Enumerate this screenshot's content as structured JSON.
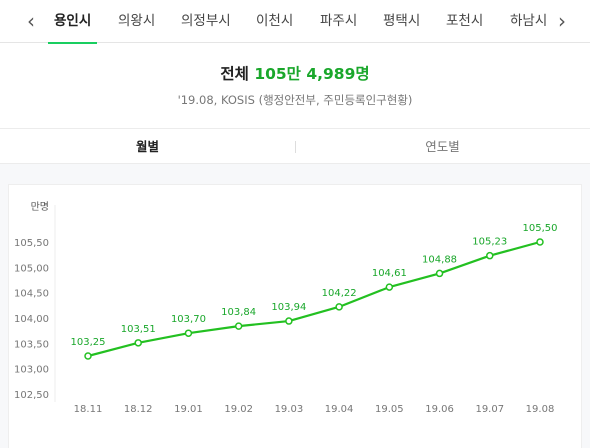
{
  "nav": {
    "prev_icon": "chevron-left-icon",
    "next_icon": "chevron-right-icon",
    "tabs": [
      {
        "label": "용인시",
        "active": true
      },
      {
        "label": "의왕시",
        "active": false
      },
      {
        "label": "의정부시",
        "active": false
      },
      {
        "label": "이천시",
        "active": false
      },
      {
        "label": "파주시",
        "active": false
      },
      {
        "label": "평택시",
        "active": false
      },
      {
        "label": "포천시",
        "active": false
      },
      {
        "label": "하남시",
        "active": false
      }
    ]
  },
  "summary": {
    "label": "전체",
    "value": "105만 4,989명",
    "source": "'19.08, KOSIS (행정안전부, 주민등록인구현황)"
  },
  "toggle": {
    "monthly": "월별",
    "yearly": "연도별",
    "selected": "monthly"
  },
  "colors": {
    "accent": "#19ce60",
    "line": "#23c021",
    "value_text": "#1aa72b"
  },
  "chart_data": {
    "type": "line",
    "unit_label": "만명",
    "categories": [
      "18.11",
      "18.12",
      "19.01",
      "19.02",
      "19.03",
      "19.04",
      "19.05",
      "19.06",
      "19.07",
      "19.08"
    ],
    "values": [
      103.25,
      103.51,
      103.7,
      103.84,
      103.94,
      104.22,
      104.61,
      104.88,
      105.23,
      105.5
    ],
    "value_labels": [
      "103,25",
      "103,51",
      "103,70",
      "103,84",
      "103,94",
      "104,22",
      "104,61",
      "104,88",
      "105,23",
      "105,50"
    ],
    "yticks": [
      102.5,
      103.0,
      103.5,
      104.0,
      104.5,
      105.0,
      105.5
    ],
    "ytick_labels": [
      "102,50",
      "103,00",
      "103,50",
      "104,00",
      "104,50",
      "105,00",
      "105,50"
    ],
    "ylim": [
      102.5,
      105.5
    ],
    "grid": false
  }
}
